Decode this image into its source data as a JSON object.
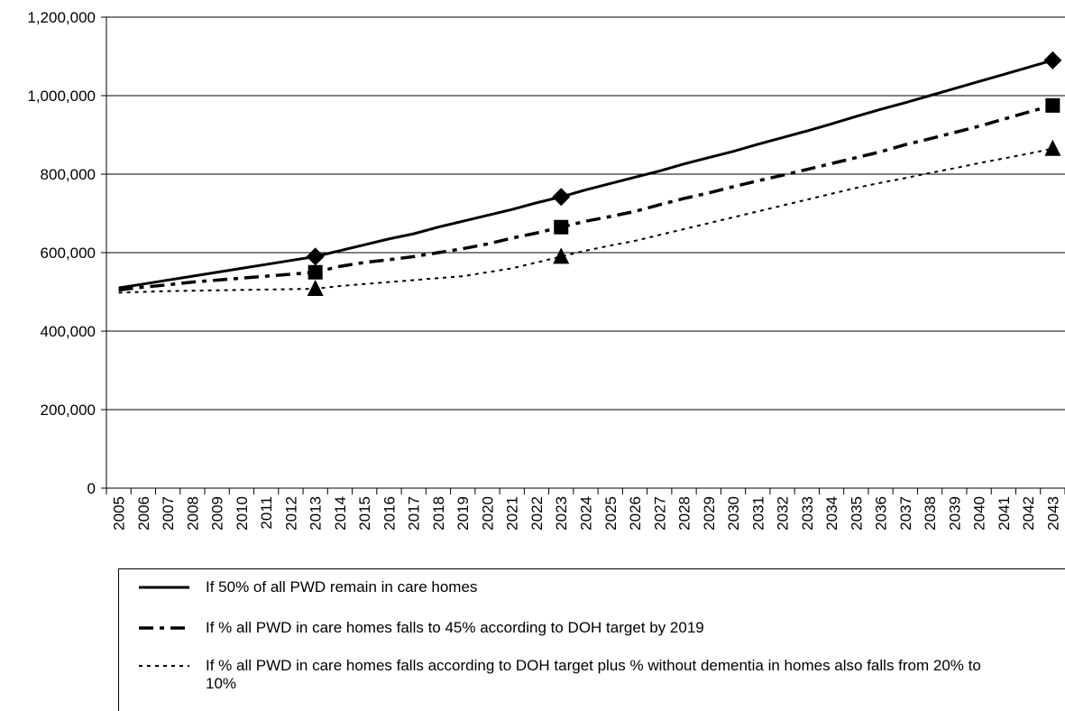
{
  "chart_data": {
    "type": "line",
    "categories": [
      "2005",
      "2006",
      "2007",
      "2008",
      "2009",
      "2010",
      "2011",
      "2012",
      "2013",
      "2014",
      "2015",
      "2016",
      "2017",
      "2018",
      "2019",
      "2020",
      "2021",
      "2022",
      "2023",
      "2024",
      "2025",
      "2026",
      "2027",
      "2028",
      "2029",
      "2030",
      "2031",
      "2032",
      "2033",
      "2034",
      "2035",
      "2036",
      "2037",
      "2038",
      "2039",
      "2040",
      "2041",
      "2042",
      "2043"
    ],
    "ylim": [
      0,
      1200000
    ],
    "yticks": [
      0,
      {
        "value": 200000,
        "label": "200,000"
      },
      {
        "value": 400000,
        "label": "400,000"
      },
      {
        "value": 600000,
        "label": "600,000"
      },
      {
        "value": 800000,
        "label": "800,000"
      },
      {
        "value": 1000000,
        "label": "1,000,000"
      },
      {
        "value": 1200000,
        "label": "1,200,000"
      }
    ],
    "grid": true,
    "series": [
      {
        "name": "If 50% of all PWD remain in care homes",
        "color": "#000000",
        "line_style": "solid",
        "marker": "diamond",
        "marker_indices": [
          8,
          18,
          38
        ],
        "values": [
          510000,
          520000,
          530000,
          540000,
          550000,
          560000,
          570000,
          580000,
          590000,
          605000,
          620000,
          635000,
          648000,
          665000,
          680000,
          695000,
          710000,
          727000,
          742000,
          760000,
          776000,
          792000,
          808000,
          826000,
          842000,
          858000,
          876000,
          893000,
          910000,
          928000,
          947000,
          965000,
          982000,
          1000000,
          1018000,
          1036000,
          1054000,
          1072000,
          1090000
        ]
      },
      {
        "name": "If % all PWD in care homes falls to 45% according to DOH target by 2019",
        "color": "#000000",
        "line_style": "dash-dot",
        "marker": "square",
        "marker_indices": [
          8,
          18,
          38
        ],
        "values": [
          505000,
          512000,
          518000,
          525000,
          530000,
          535000,
          540000,
          545000,
          550000,
          565000,
          575000,
          582000,
          590000,
          600000,
          610000,
          622000,
          637000,
          650000,
          665000,
          680000,
          692000,
          705000,
          722000,
          738000,
          752000,
          768000,
          783000,
          797000,
          812000,
          827000,
          842000,
          857000,
          875000,
          890000,
          906000,
          922000,
          940000,
          958000,
          975000
        ]
      },
      {
        "name": "If % all PWD in care homes falls according to DOH target plus % without dementia in homes also falls from 20% to 10%",
        "color": "#000000",
        "line_style": "dotted",
        "marker": "triangle",
        "marker_indices": [
          8,
          18,
          38
        ],
        "values": [
          498000,
          500000,
          502000,
          503000,
          504000,
          505000,
          506000,
          507000,
          508000,
          515000,
          520000,
          525000,
          530000,
          535000,
          540000,
          550000,
          560000,
          575000,
          590000,
          605000,
          618000,
          630000,
          645000,
          660000,
          675000,
          690000,
          705000,
          720000,
          735000,
          750000,
          765000,
          778000,
          790000,
          803000,
          815000,
          828000,
          840000,
          852000,
          865000
        ]
      }
    ]
  }
}
